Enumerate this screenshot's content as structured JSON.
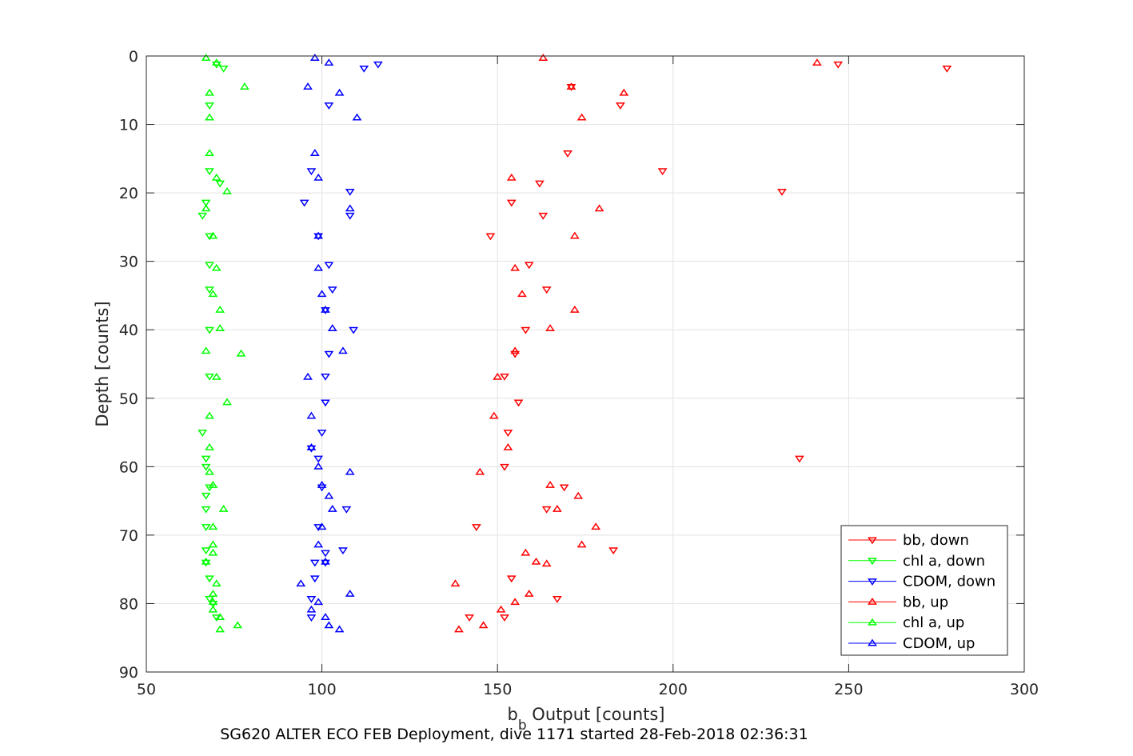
{
  "chart_data": {
    "type": "scatter",
    "title": "",
    "xlabel_main": "b",
    "xlabel_sub": "b",
    "xlabel_rest": " Output [counts]",
    "ylabel": "Depth [counts]",
    "caption": "SG620 ALTER ECO FEB Deployment, dive 1171 started 28-Feb-2018 02:36:31",
    "xlim": [
      50,
      300
    ],
    "ylim": [
      0,
      90
    ],
    "y_reversed": true,
    "grid": true,
    "legend_position": "bottom-right",
    "xticks": [
      "50",
      "100",
      "150",
      "200",
      "250",
      "300"
    ],
    "yticks": [
      "0",
      "10",
      "20",
      "30",
      "40",
      "50",
      "60",
      "70",
      "80",
      "90"
    ],
    "series": [
      {
        "name": "bb, down",
        "color": "#ff0000",
        "marker": "triangle-down",
        "points": [
          [
            247,
            1.2
          ],
          [
            278,
            1.8
          ],
          [
            171,
            4.5
          ],
          [
            185,
            7.2
          ],
          [
            170,
            14.2
          ],
          [
            197,
            16.8
          ],
          [
            162,
            18.6
          ],
          [
            231,
            19.8
          ],
          [
            154,
            21.4
          ],
          [
            163,
            23.3
          ],
          [
            148,
            26.3
          ],
          [
            159,
            30.5
          ],
          [
            164,
            34.1
          ],
          [
            158,
            40
          ],
          [
            155,
            43.5
          ],
          [
            152,
            46.8
          ],
          [
            156,
            50.6
          ],
          [
            153,
            55
          ],
          [
            236,
            58.8
          ],
          [
            152,
            60
          ],
          [
            169,
            63
          ],
          [
            164,
            66.2
          ],
          [
            144,
            68.8
          ],
          [
            183,
            72.2
          ],
          [
            154,
            76.3
          ],
          [
            167,
            79.3
          ],
          [
            152,
            82
          ],
          [
            142,
            82
          ]
        ]
      },
      {
        "name": "chl a, down",
        "color": "#00ff00",
        "marker": "triangle-down",
        "points": [
          [
            70,
            1.2
          ],
          [
            72,
            1.8
          ],
          [
            68,
            7.2
          ],
          [
            68,
            16.8
          ],
          [
            71,
            18.6
          ],
          [
            67,
            21.4
          ],
          [
            66,
            23.3
          ],
          [
            68,
            26.3
          ],
          [
            68,
            30.5
          ],
          [
            68,
            34.1
          ],
          [
            68,
            40
          ],
          [
            68,
            46.8
          ],
          [
            66,
            55
          ],
          [
            67,
            58.8
          ],
          [
            67,
            60
          ],
          [
            68,
            63
          ],
          [
            67,
            64.2
          ],
          [
            67,
            66.2
          ],
          [
            67,
            68.8
          ],
          [
            67,
            72.2
          ],
          [
            67,
            74
          ],
          [
            68,
            76.3
          ],
          [
            68,
            79.3
          ],
          [
            69,
            80
          ],
          [
            70,
            82
          ]
        ]
      },
      {
        "name": "CDOM, down",
        "color": "#0000ff",
        "marker": "triangle-down",
        "points": [
          [
            116,
            1.2
          ],
          [
            112,
            1.8
          ],
          [
            102,
            7.2
          ],
          [
            97,
            16.8
          ],
          [
            108,
            19.8
          ],
          [
            95,
            21.4
          ],
          [
            108,
            23.3
          ],
          [
            99,
            26.3
          ],
          [
            102,
            30.5
          ],
          [
            103,
            34.1
          ],
          [
            101,
            37.1
          ],
          [
            109,
            40
          ],
          [
            102,
            43.5
          ],
          [
            101,
            46.8
          ],
          [
            101,
            50.6
          ],
          [
            100,
            55
          ],
          [
            99,
            58.8
          ],
          [
            97,
            57.3
          ],
          [
            100,
            63
          ],
          [
            107,
            66.2
          ],
          [
            99,
            68.8
          ],
          [
            106,
            72.2
          ],
          [
            101,
            72.6
          ],
          [
            98,
            74
          ],
          [
            98,
            76.3
          ],
          [
            97,
            79.3
          ],
          [
            97,
            82
          ],
          [
            101,
            74
          ]
        ]
      },
      {
        "name": "bb, up",
        "color": "#ff0000",
        "marker": "triangle-up",
        "points": [
          [
            163,
            0.3
          ],
          [
            241,
            1
          ],
          [
            171,
            4.5
          ],
          [
            186,
            5.4
          ],
          [
            174,
            9
          ],
          [
            154,
            17.8
          ],
          [
            179,
            22.3
          ],
          [
            172,
            26.3
          ],
          [
            155,
            31
          ],
          [
            157,
            34.8
          ],
          [
            172,
            37.1
          ],
          [
            165,
            39.8
          ],
          [
            155,
            43.1
          ],
          [
            150,
            46.9
          ],
          [
            149,
            52.6
          ],
          [
            153,
            57.2
          ],
          [
            145,
            60.8
          ],
          [
            165,
            62.7
          ],
          [
            173,
            64.3
          ],
          [
            167,
            66.2
          ],
          [
            178,
            68.8
          ],
          [
            174,
            71.4
          ],
          [
            158,
            72.6
          ],
          [
            161,
            73.9
          ],
          [
            164,
            74.2
          ],
          [
            138,
            77.1
          ],
          [
            159,
            78.6
          ],
          [
            155,
            79.8
          ],
          [
            151,
            80.9
          ],
          [
            146,
            83.2
          ],
          [
            139,
            83.8
          ]
        ]
      },
      {
        "name": "chl a, up",
        "color": "#00ff00",
        "marker": "triangle-up",
        "points": [
          [
            67,
            0.3
          ],
          [
            70,
            1
          ],
          [
            78,
            4.5
          ],
          [
            68,
            5.4
          ],
          [
            68,
            9
          ],
          [
            68,
            14.2
          ],
          [
            70,
            17.8
          ],
          [
            73,
            19.8
          ],
          [
            67,
            22.3
          ],
          [
            69,
            26.3
          ],
          [
            70,
            31
          ],
          [
            69,
            34.8
          ],
          [
            71,
            37.1
          ],
          [
            71,
            39.8
          ],
          [
            67,
            43.1
          ],
          [
            77,
            43.5
          ],
          [
            70,
            46.9
          ],
          [
            73,
            50.6
          ],
          [
            68,
            52.6
          ],
          [
            68,
            57.2
          ],
          [
            68,
            60.8
          ],
          [
            69,
            62.7
          ],
          [
            72,
            66.2
          ],
          [
            69,
            68.8
          ],
          [
            69,
            71.4
          ],
          [
            69,
            72.6
          ],
          [
            67,
            73.9
          ],
          [
            70,
            77.1
          ],
          [
            69,
            78.6
          ],
          [
            69,
            79.8
          ],
          [
            69,
            80.9
          ],
          [
            71,
            82
          ],
          [
            76,
            83.2
          ],
          [
            71,
            83.8
          ]
        ]
      },
      {
        "name": "CDOM, up",
        "color": "#0000ff",
        "marker": "triangle-up",
        "points": [
          [
            98,
            0.3
          ],
          [
            102,
            1
          ],
          [
            96,
            4.5
          ],
          [
            105,
            5.4
          ],
          [
            110,
            9
          ],
          [
            98,
            14.2
          ],
          [
            99,
            17.8
          ],
          [
            108,
            22.3
          ],
          [
            99,
            26.3
          ],
          [
            99,
            31
          ],
          [
            100,
            34.8
          ],
          [
            101,
            37.1
          ],
          [
            103,
            39.8
          ],
          [
            106,
            43.1
          ],
          [
            96,
            46.9
          ],
          [
            97,
            52.6
          ],
          [
            97,
            57.2
          ],
          [
            99,
            60
          ],
          [
            108,
            60.8
          ],
          [
            100,
            62.7
          ],
          [
            102,
            64.3
          ],
          [
            103,
            66.2
          ],
          [
            100,
            68.8
          ],
          [
            99,
            71.4
          ],
          [
            101,
            73.9
          ],
          [
            94,
            77.1
          ],
          [
            108,
            78.6
          ],
          [
            99,
            79.8
          ],
          [
            97,
            80.9
          ],
          [
            101,
            82
          ],
          [
            102,
            83.2
          ],
          [
            105,
            83.8
          ]
        ]
      }
    ]
  }
}
